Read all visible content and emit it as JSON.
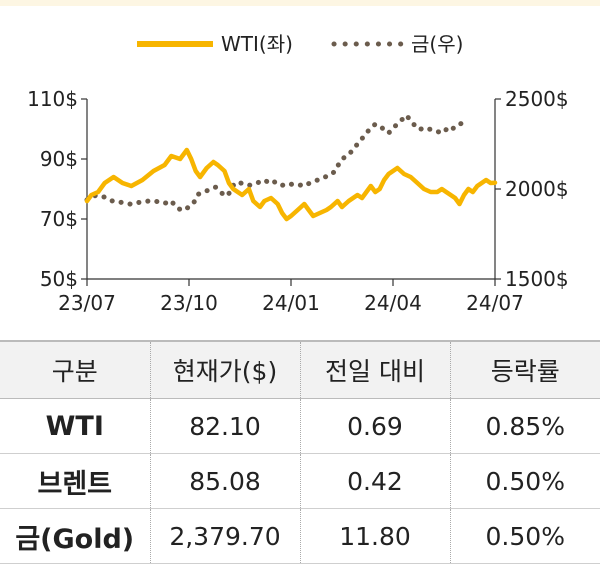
{
  "chart_data": {
    "type": "line",
    "legend_placement": "top",
    "x_ticks": [
      "23/07",
      "23/10",
      "24/01",
      "24/04",
      "24/07"
    ],
    "y_left": {
      "ticks": [
        "110$",
        "90$",
        "70$",
        "50$"
      ],
      "range": [
        50,
        110
      ]
    },
    "y_right": {
      "ticks": [
        "2500$",
        "2000$",
        "1500$"
      ],
      "range": [
        1500,
        2500
      ]
    },
    "grid": false,
    "series": [
      {
        "name": "WTI(좌)",
        "axis": "left",
        "style": "solid",
        "color": "#f7b500",
        "points": [
          [
            0,
            76
          ],
          [
            2,
            78
          ],
          [
            5,
            79
          ],
          [
            8,
            82
          ],
          [
            12,
            84
          ],
          [
            16,
            82
          ],
          [
            20,
            81
          ],
          [
            25,
            83
          ],
          [
            30,
            86
          ],
          [
            35,
            88
          ],
          [
            38,
            91
          ],
          [
            42,
            90
          ],
          [
            45,
            93
          ],
          [
            47,
            90
          ],
          [
            49,
            86
          ],
          [
            51,
            84
          ],
          [
            54,
            87
          ],
          [
            57,
            89
          ],
          [
            59,
            88
          ],
          [
            62,
            86
          ],
          [
            64,
            82
          ],
          [
            66,
            80
          ],
          [
            70,
            78
          ],
          [
            73,
            80
          ],
          [
            75,
            76
          ],
          [
            78,
            74
          ],
          [
            80,
            76
          ],
          [
            83,
            77
          ],
          [
            86,
            75
          ],
          [
            88,
            72
          ],
          [
            90,
            70
          ],
          [
            92,
            71
          ],
          [
            95,
            73
          ],
          [
            98,
            75
          ],
          [
            100,
            73
          ],
          [
            102,
            71
          ],
          [
            105,
            72
          ],
          [
            108,
            73
          ],
          [
            110,
            74
          ],
          [
            113,
            76
          ],
          [
            115,
            74
          ],
          [
            118,
            76
          ],
          [
            120,
            77
          ],
          [
            122,
            78
          ],
          [
            124,
            77
          ],
          [
            126,
            79
          ],
          [
            128,
            81
          ],
          [
            130,
            79
          ],
          [
            132,
            80
          ],
          [
            134,
            83
          ],
          [
            136,
            85
          ],
          [
            138,
            86
          ],
          [
            140,
            87
          ],
          [
            143,
            85
          ],
          [
            146,
            84
          ],
          [
            149,
            82
          ],
          [
            152,
            80
          ],
          [
            155,
            79
          ],
          [
            158,
            79
          ],
          [
            160,
            80
          ],
          [
            162,
            79
          ],
          [
            164,
            78
          ],
          [
            166,
            77
          ],
          [
            168,
            75
          ],
          [
            170,
            78
          ],
          [
            172,
            80
          ],
          [
            174,
            79
          ],
          [
            176,
            81
          ],
          [
            178,
            82
          ],
          [
            180,
            83
          ],
          [
            182,
            82
          ],
          [
            184,
            82.1
          ]
        ]
      },
      {
        "name": "금(우)",
        "axis": "right",
        "style": "dotted",
        "color": "#6b5c4d",
        "points": [
          [
            0,
            1940
          ],
          [
            4,
            1965
          ],
          [
            8,
            1955
          ],
          [
            12,
            1930
          ],
          [
            16,
            1925
          ],
          [
            20,
            1915
          ],
          [
            25,
            1930
          ],
          [
            30,
            1935
          ],
          [
            35,
            1920
          ],
          [
            38,
            1935
          ],
          [
            40,
            1900
          ],
          [
            43,
            1880
          ],
          [
            46,
            1900
          ],
          [
            48,
            1920
          ],
          [
            50,
            1970
          ],
          [
            53,
            1985
          ],
          [
            56,
            2000
          ],
          [
            58,
            2010
          ],
          [
            60,
            1990
          ],
          [
            62,
            1960
          ],
          [
            64,
            1975
          ],
          [
            66,
            2020
          ],
          [
            68,
            2040
          ],
          [
            70,
            2030
          ],
          [
            73,
            2020
          ],
          [
            76,
            2030
          ],
          [
            78,
            2040
          ],
          [
            80,
            2050
          ],
          [
            82,
            2035
          ],
          [
            84,
            2045
          ],
          [
            86,
            2025
          ],
          [
            88,
            2020
          ],
          [
            90,
            2030
          ],
          [
            93,
            2025
          ],
          [
            96,
            2020
          ],
          [
            98,
            2035
          ],
          [
            100,
            2030
          ],
          [
            103,
            2045
          ],
          [
            106,
            2060
          ],
          [
            108,
            2070
          ],
          [
            110,
            2080
          ],
          [
            112,
            2100
          ],
          [
            114,
            2150
          ],
          [
            116,
            2175
          ],
          [
            118,
            2190
          ],
          [
            120,
            2220
          ],
          [
            122,
            2250
          ],
          [
            124,
            2280
          ],
          [
            126,
            2310
          ],
          [
            128,
            2340
          ],
          [
            130,
            2360
          ],
          [
            132,
            2350
          ],
          [
            134,
            2330
          ],
          [
            136,
            2310
          ],
          [
            138,
            2340
          ],
          [
            140,
            2360
          ],
          [
            142,
            2385
          ],
          [
            144,
            2410
          ],
          [
            146,
            2380
          ],
          [
            148,
            2350
          ],
          [
            150,
            2330
          ],
          [
            152,
            2340
          ],
          [
            154,
            2335
          ],
          [
            156,
            2325
          ],
          [
            158,
            2320
          ],
          [
            160,
            2310
          ],
          [
            162,
            2330
          ],
          [
            164,
            2320
          ],
          [
            166,
            2350
          ],
          [
            168,
            2360
          ],
          [
            170,
            2370
          ],
          [
            172,
            2379.7
          ]
        ]
      }
    ]
  },
  "table": {
    "headers": [
      "구분",
      "현재가($)",
      "전일 대비",
      "등락률"
    ],
    "rows": [
      [
        "WTI",
        "82.10",
        "0.69",
        "0.85%"
      ],
      [
        "브렌트",
        "85.08",
        "0.42",
        "0.50%"
      ],
      [
        "금(Gold)",
        "2,379.70",
        "11.80",
        "0.50%"
      ]
    ]
  }
}
